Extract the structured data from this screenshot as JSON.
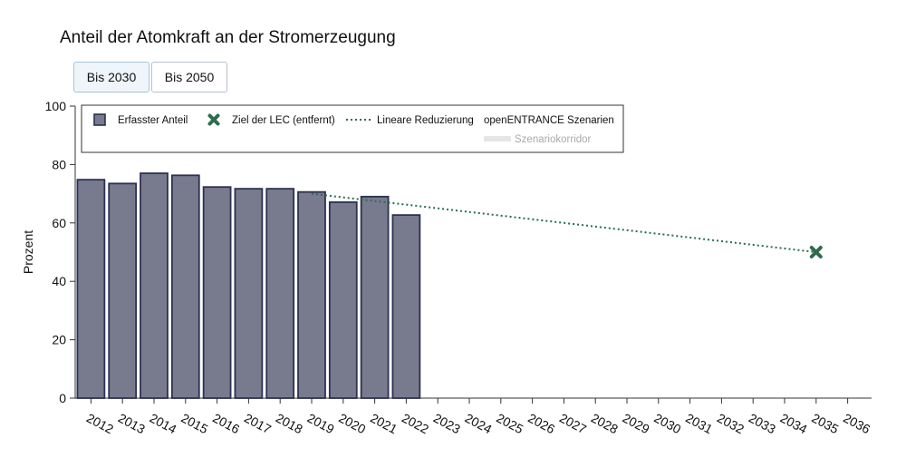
{
  "title": "Anteil der Atomkraft an der Stromerzeugung",
  "tabs": [
    {
      "label": "Bis 2030",
      "active": true
    },
    {
      "label": "Bis 2050",
      "active": false
    }
  ],
  "colors": {
    "bar_fill": "#787a8e",
    "bar_stroke": "#2d3150",
    "target": "#2e6b4f",
    "line": "#2e6b4f",
    "corridor": "#e6e6e6"
  },
  "legend": {
    "recorded": "Erfasster Anteil",
    "target": "Ziel der LEC (entfernt)",
    "linear": "Lineare Reduzierung",
    "scenarios_header": "openENTRANCE Szenarien",
    "corridor": "Szenariokorridor"
  },
  "chart_data": {
    "type": "bar",
    "title": "Anteil der Atomkraft an der Stromerzeugung",
    "xlabel": "",
    "ylabel": "Prozent",
    "ylim": [
      0,
      100
    ],
    "yticks": [
      0,
      20,
      40,
      60,
      80,
      100
    ],
    "categories": [
      "2012",
      "2013",
      "2014",
      "2015",
      "2016",
      "2017",
      "2018",
      "2019",
      "2020",
      "2021",
      "2022",
      "2023",
      "2024",
      "2025",
      "2026",
      "2027",
      "2028",
      "2029",
      "2030",
      "2031",
      "2032",
      "2033",
      "2034",
      "2035",
      "2036"
    ],
    "series": [
      {
        "name": "Erfasster Anteil",
        "type": "bar",
        "x": [
          "2012",
          "2013",
          "2014",
          "2015",
          "2016",
          "2017",
          "2018",
          "2019",
          "2020",
          "2021",
          "2022"
        ],
        "values": [
          74.8,
          73.5,
          77.0,
          76.3,
          72.3,
          71.7,
          71.7,
          70.6,
          67.1,
          69.0,
          62.7
        ]
      },
      {
        "name": "Lineare Reduzierung",
        "type": "line",
        "style": "dotted",
        "x": [
          "2019",
          "2035"
        ],
        "values": [
          70.0,
          50.0
        ]
      },
      {
        "name": "Ziel der LEC (entfernt)",
        "type": "marker",
        "x": [
          "2035"
        ],
        "values": [
          50.0
        ]
      }
    ],
    "grid": false,
    "legend_position": "top"
  }
}
